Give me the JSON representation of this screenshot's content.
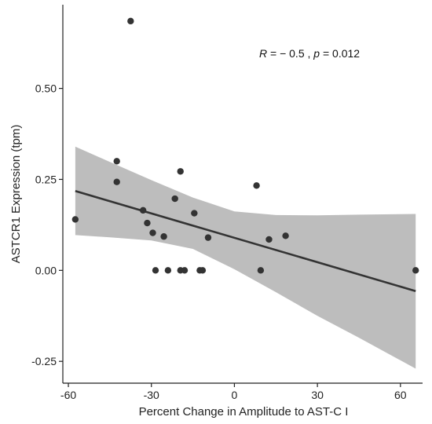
{
  "chart_data": {
    "type": "scatter",
    "title": "",
    "xlabel": "Percent Change in Amplitude to AST-C I",
    "ylabel": "ASTCR1 Expression (tpm)",
    "xlim": [
      -62,
      68
    ],
    "ylim": [
      -0.31,
      0.73
    ],
    "xticks": [
      -60,
      -30,
      0,
      30,
      60
    ],
    "yticks": [
      -0.25,
      0.0,
      0.25,
      0.5
    ],
    "xtick_labels": [
      "-60",
      "-30",
      "0",
      "30",
      "60"
    ],
    "ytick_labels": [
      "-0.25",
      "0.00",
      "0.25",
      "0.50"
    ],
    "grid": false,
    "annotation": {
      "prefix": "R",
      "text": " = − 0.5 ,  ",
      "p_label": "p",
      "p_text": " = 0.012"
    },
    "points": [
      {
        "x": -57.5,
        "y": 0.14
      },
      {
        "x": -37.5,
        "y": 0.685
      },
      {
        "x": -42.5,
        "y": 0.3
      },
      {
        "x": -42.5,
        "y": 0.243
      },
      {
        "x": -33.0,
        "y": 0.165
      },
      {
        "x": -31.5,
        "y": 0.13
      },
      {
        "x": -29.5,
        "y": 0.103
      },
      {
        "x": -28.5,
        "y": 0.0
      },
      {
        "x": -25.5,
        "y": 0.093
      },
      {
        "x": -24.0,
        "y": 0.0
      },
      {
        "x": -21.5,
        "y": 0.197
      },
      {
        "x": -19.5,
        "y": 0.272
      },
      {
        "x": -19.5,
        "y": 0.0
      },
      {
        "x": -18.0,
        "y": 0.0
      },
      {
        "x": -14.5,
        "y": 0.157
      },
      {
        "x": -12.5,
        "y": 0.0
      },
      {
        "x": -11.5,
        "y": 0.0
      },
      {
        "x": -9.5,
        "y": 0.09
      },
      {
        "x": 8.0,
        "y": 0.233
      },
      {
        "x": 9.5,
        "y": 0.0
      },
      {
        "x": 12.5,
        "y": 0.085
      },
      {
        "x": 18.5,
        "y": 0.095
      },
      {
        "x": 65.5,
        "y": 0.0
      }
    ],
    "fit_line": {
      "x": [
        -57.5,
        65.5
      ],
      "y": [
        0.218,
        -0.057
      ]
    },
    "confidence_band": {
      "x": [
        -57.5,
        -45,
        -30,
        -15,
        0,
        15,
        30,
        45,
        65.5
      ],
      "lower": [
        0.097,
        0.091,
        0.082,
        0.059,
        0.003,
        -0.06,
        -0.125,
        -0.185,
        -0.27
      ],
      "upper": [
        0.34,
        0.298,
        0.248,
        0.2,
        0.162,
        0.152,
        0.151,
        0.153,
        0.155
      ]
    },
    "colors": {
      "points": "#333333",
      "line": "#333333",
      "band": "#bdbdbd",
      "axis": "#222222"
    }
  }
}
